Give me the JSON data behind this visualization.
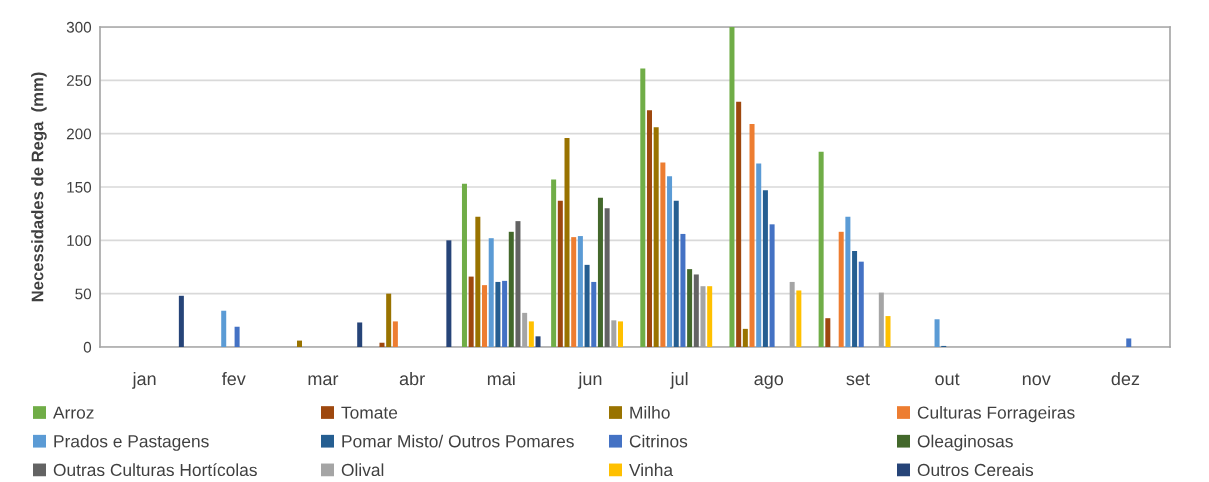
{
  "chart_data": {
    "type": "bar",
    "categories": [
      "jan",
      "fev",
      "mar",
      "abr",
      "mai",
      "jun",
      "jul",
      "ago",
      "set",
      "out",
      "nov",
      "dez"
    ],
    "ylabel": "Necessidades de Rega  (mm)",
    "ylim": [
      0,
      300
    ],
    "yticks": [
      0,
      50,
      100,
      150,
      200,
      250,
      300
    ],
    "grid": "y",
    "legend": "bottom",
    "series": [
      {
        "name": "Arroz",
        "color": "#70ad47",
        "values": [
          null,
          null,
          null,
          null,
          153,
          157,
          261,
          300,
          183,
          null,
          null,
          null
        ]
      },
      {
        "name": "Tomate",
        "color": "#9e480e",
        "values": [
          null,
          null,
          null,
          4,
          66,
          137,
          222,
          230,
          27,
          null,
          null,
          null
        ]
      },
      {
        "name": "Milho",
        "color": "#997300",
        "values": [
          null,
          null,
          6,
          50,
          122,
          196,
          206,
          17,
          null,
          null,
          null,
          null
        ]
      },
      {
        "name": "Culturas Forrageiras",
        "color": "#ed7d31",
        "values": [
          null,
          null,
          null,
          24,
          58,
          103,
          173,
          209,
          108,
          null,
          null,
          null
        ]
      },
      {
        "name": "Prados e Pastagens",
        "color": "#5b9bd5",
        "values": [
          null,
          34,
          null,
          null,
          102,
          104,
          160,
          172,
          122,
          26,
          null,
          null
        ]
      },
      {
        "name": "Pomar Misto/ Outros Pomares",
        "color": "#255e91",
        "values": [
          null,
          null,
          null,
          null,
          61,
          77,
          137,
          147,
          90,
          1,
          null,
          null
        ]
      },
      {
        "name": "Citrinos",
        "color": "#4472c4",
        "values": [
          null,
          19,
          null,
          null,
          62,
          61,
          106,
          115,
          80,
          null,
          null,
          8
        ]
      },
      {
        "name": "Oleaginosas",
        "color": "#43682b",
        "values": [
          null,
          null,
          null,
          null,
          108,
          140,
          73,
          null,
          null,
          null,
          null,
          null
        ]
      },
      {
        "name": "Outras Culturas Hortícolas",
        "color": "#636363",
        "values": [
          null,
          null,
          null,
          null,
          118,
          130,
          68,
          null,
          null,
          null,
          null,
          null
        ]
      },
      {
        "name": "Olival",
        "color": "#a5a5a5",
        "values": [
          null,
          null,
          null,
          null,
          32,
          25,
          57,
          61,
          51,
          null,
          null,
          null
        ]
      },
      {
        "name": "Vinha",
        "color": "#ffc000",
        "values": [
          null,
          null,
          null,
          null,
          24,
          24,
          57,
          53,
          29,
          null,
          null,
          null
        ]
      },
      {
        "name": "Outros Cereais",
        "color": "#264478",
        "values": [
          48,
          null,
          23,
          100,
          10,
          null,
          null,
          null,
          null,
          null,
          null,
          null
        ]
      }
    ]
  }
}
